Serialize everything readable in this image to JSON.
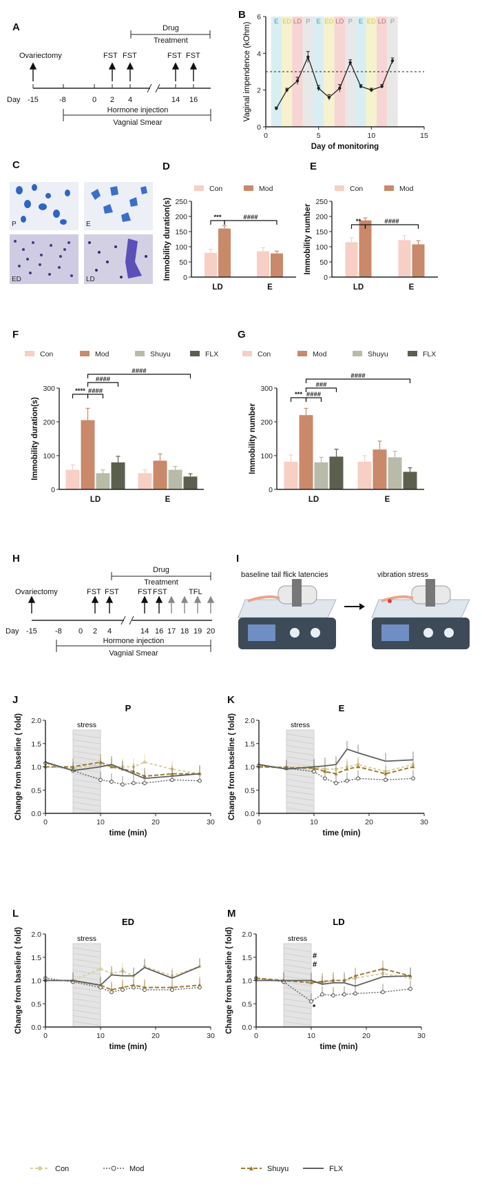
{
  "panels": {
    "A": {
      "label": "A",
      "drug_treatment_line1": "Drug",
      "drug_treatment_line2": "Treatment",
      "ovariectomy": "Ovariectomy",
      "fst": "FST",
      "day_label": "Day",
      "days": [
        "-15",
        "-8",
        "0",
        "2",
        "4",
        "14",
        "16"
      ],
      "hormone_injection": "Hormone injection",
      "vaginal_smear": "Vagnial Smear"
    },
    "C": {
      "label": "C",
      "stage_labels": [
        "P",
        "E",
        "ED",
        "LD"
      ]
    },
    "H": {
      "label": "H",
      "drug_treatment_line1": "Drug",
      "drug_treatment_line2": "Treatment",
      "ovariectomy": "Ovariectomy",
      "fst": "FST",
      "tfl": "TFL",
      "day_label": "Day",
      "days": [
        "-15",
        "-8",
        "0",
        "2",
        "4",
        "14",
        "16",
        "17",
        "18",
        "19",
        "20"
      ],
      "hormone_injection": "Hormone injection",
      "vaginal_smear": "Vagnial Smear"
    },
    "I": {
      "label": "I",
      "left_caption": "baseline tail flick latencies",
      "right_caption": "vibration stress"
    }
  },
  "colors": {
    "con": "#f7cfc4",
    "mod": "#c9896a",
    "shuyu": "#b7bba8",
    "flx": "#5b5f4e",
    "con_line": "#d8cf9a",
    "mod_line": "#666666",
    "shuyu_line": "#9c7a33",
    "flx_line": "#5f5f5f"
  },
  "chart_data": [
    {
      "id": "B",
      "label": "B",
      "type": "line",
      "ylabel": "Vaginal impendence (kOhm)",
      "xlabel": "Day of monitoring",
      "xlim": [
        0,
        15
      ],
      "ylim": [
        0,
        6
      ],
      "xticks": [
        0,
        5,
        10,
        15
      ],
      "yticks": [
        0,
        2,
        4,
        6
      ],
      "threshold": 3.0,
      "stages": [
        "E",
        "ED",
        "LD",
        "P",
        "E",
        "ED",
        "LD",
        "P",
        "E",
        "ED",
        "LD",
        "P"
      ],
      "x": [
        1,
        2,
        3,
        4,
        5,
        6,
        7,
        8,
        9,
        10,
        11,
        12
      ],
      "values": [
        1.0,
        2.0,
        2.5,
        3.8,
        2.1,
        1.6,
        2.1,
        3.5,
        2.2,
        2.0,
        2.2,
        3.6
      ],
      "errors": [
        0.08,
        0.1,
        0.2,
        0.3,
        0.15,
        0.15,
        0.2,
        0.15,
        0.1,
        0.1,
        0.1,
        0.15
      ]
    },
    {
      "id": "D",
      "label": "D",
      "type": "bar",
      "ylabel": "Immobility duration(s)",
      "categories": [
        "LD",
        "E"
      ],
      "ylim": [
        0,
        250
      ],
      "yticks": [
        0,
        50,
        100,
        150,
        200,
        250
      ],
      "series": [
        {
          "name": "Con",
          "values": [
            80,
            85
          ],
          "errors": [
            12,
            12
          ]
        },
        {
          "name": "Mod",
          "values": [
            160,
            78
          ],
          "errors": [
            10,
            8
          ]
        }
      ],
      "annotations": [
        "***",
        "####"
      ]
    },
    {
      "id": "E",
      "label": "E",
      "type": "bar",
      "ylabel": "Immobility number",
      "categories": [
        "LD",
        "E"
      ],
      "ylim": [
        0,
        250
      ],
      "yticks": [
        0,
        50,
        100,
        150,
        200,
        250
      ],
      "series": [
        {
          "name": "Con",
          "values": [
            115,
            122
          ],
          "errors": [
            15,
            15
          ]
        },
        {
          "name": "Mod",
          "values": [
            187,
            108
          ],
          "errors": [
            8,
            12
          ]
        }
      ],
      "annotations": [
        "**",
        "####"
      ]
    },
    {
      "id": "F",
      "label": "F",
      "type": "bar",
      "ylabel": "Immobility duration(s)",
      "categories": [
        "LD",
        "E"
      ],
      "ylim": [
        0,
        300
      ],
      "yticks": [
        0,
        100,
        200,
        300
      ],
      "series": [
        {
          "name": "Con",
          "values": [
            58,
            48
          ],
          "errors": [
            15,
            10
          ]
        },
        {
          "name": "Mod",
          "values": [
            205,
            85
          ],
          "errors": [
            35,
            20
          ]
        },
        {
          "name": "Shuyu",
          "values": [
            48,
            58
          ],
          "errors": [
            10,
            10
          ]
        },
        {
          "name": "FLX",
          "values": [
            80,
            38
          ],
          "errors": [
            18,
            8
          ]
        }
      ],
      "annotations": [
        "****",
        "####",
        "####",
        "####"
      ]
    },
    {
      "id": "G",
      "label": "G",
      "type": "bar",
      "ylabel": "Immobility number",
      "categories": [
        "LD",
        "E"
      ],
      "ylim": [
        0,
        300
      ],
      "yticks": [
        0,
        100,
        200,
        300
      ],
      "series": [
        {
          "name": "Con",
          "values": [
            82,
            82
          ],
          "errors": [
            20,
            18
          ]
        },
        {
          "name": "Mod",
          "values": [
            220,
            118
          ],
          "errors": [
            20,
            25
          ]
        },
        {
          "name": "Shuyu",
          "values": [
            80,
            95
          ],
          "errors": [
            15,
            18
          ]
        },
        {
          "name": "FLX",
          "values": [
            97,
            52
          ],
          "errors": [
            22,
            12
          ]
        }
      ],
      "annotations": [
        "***",
        "####",
        "###",
        "####"
      ]
    },
    {
      "id": "J",
      "label": "J",
      "type": "line",
      "title": "P",
      "xlabel": "time (min)",
      "ylabel": "Change from baseline ( fold)",
      "xlim": [
        0,
        30
      ],
      "ylim": [
        0,
        2.0
      ],
      "xticks": [
        0,
        10,
        20,
        30
      ],
      "yticks": [
        0,
        0.5,
        1.0,
        1.5,
        2.0
      ],
      "stress_label": "stress",
      "stress_range": [
        5,
        10
      ],
      "x": [
        0,
        5,
        10,
        12,
        14,
        16,
        18,
        23,
        28
      ],
      "series": [
        {
          "name": "Con",
          "values": [
            1.0,
            0.97,
            1.05,
            1.0,
            1.0,
            1.0,
            1.1,
            0.95,
            0.85
          ]
        },
        {
          "name": "Mod",
          "values": [
            1.08,
            0.92,
            0.72,
            0.68,
            0.62,
            0.65,
            0.65,
            0.72,
            0.7
          ]
        },
        {
          "name": "Shuyu",
          "values": [
            1.0,
            1.0,
            1.1,
            1.0,
            0.95,
            0.9,
            0.8,
            0.85,
            0.85
          ]
        },
        {
          "name": "FLX",
          "values": [
            1.1,
            0.92,
            1.0,
            1.05,
            0.95,
            0.85,
            0.75,
            0.8,
            0.85
          ]
        }
      ]
    },
    {
      "id": "K",
      "label": "K",
      "type": "line",
      "title": "E",
      "xlabel": "time (min)",
      "ylabel": "Change from baseline ( fold)",
      "xlim": [
        0,
        30
      ],
      "ylim": [
        0,
        2.0
      ],
      "xticks": [
        0,
        10,
        20,
        30
      ],
      "yticks": [
        0,
        0.5,
        1.0,
        1.5,
        2.0
      ],
      "stress_label": "stress",
      "stress_range": [
        5,
        10
      ],
      "x": [
        0,
        5,
        10,
        12,
        14,
        16,
        18,
        23,
        28
      ],
      "series": [
        {
          "name": "Con",
          "values": [
            1.0,
            1.0,
            1.0,
            0.95,
            0.95,
            1.0,
            1.05,
            0.9,
            1.05
          ]
        },
        {
          "name": "Mod",
          "values": [
            1.03,
            0.97,
            0.9,
            0.75,
            0.65,
            0.7,
            0.75,
            0.72,
            0.75
          ]
        },
        {
          "name": "Shuyu",
          "values": [
            1.0,
            0.98,
            0.97,
            0.9,
            0.85,
            0.95,
            1.0,
            0.85,
            1.0
          ]
        },
        {
          "name": "FLX",
          "values": [
            1.05,
            0.95,
            1.0,
            1.02,
            1.05,
            1.38,
            1.3,
            1.12,
            1.15
          ]
        }
      ]
    },
    {
      "id": "L",
      "label": "L",
      "type": "line",
      "title": "ED",
      "xlabel": "time (min)",
      "ylabel": "Change from baseline ( fold)",
      "xlim": [
        0,
        30
      ],
      "ylim": [
        0,
        2.0
      ],
      "xticks": [
        0,
        10,
        20,
        30
      ],
      "yticks": [
        0,
        0.5,
        1.0,
        1.5,
        2.0
      ],
      "stress_label": "stress",
      "stress_range": [
        5,
        10
      ],
      "x": [
        0,
        5,
        10,
        12,
        14,
        16,
        18,
        23,
        28
      ],
      "series": [
        {
          "name": "Con",
          "values": [
            1.0,
            1.0,
            1.25,
            1.15,
            1.2,
            1.1,
            1.3,
            1.1,
            1.3
          ]
        },
        {
          "name": "Mod",
          "values": [
            1.05,
            0.97,
            0.85,
            0.75,
            0.8,
            0.85,
            0.8,
            0.8,
            0.85
          ]
        },
        {
          "name": "Shuyu",
          "values": [
            1.0,
            1.0,
            0.9,
            0.8,
            0.85,
            0.9,
            0.85,
            0.85,
            0.9
          ]
        },
        {
          "name": "FLX",
          "values": [
            1.0,
            1.0,
            0.9,
            1.12,
            1.1,
            1.1,
            1.28,
            1.05,
            1.3
          ]
        }
      ]
    },
    {
      "id": "M",
      "label": "M",
      "type": "line",
      "title": "LD",
      "xlabel": "time (min)",
      "ylabel": "Change from baseline ( fold)",
      "xlim": [
        0,
        30
      ],
      "ylim": [
        0,
        2.0
      ],
      "xticks": [
        0,
        10,
        20,
        30
      ],
      "yticks": [
        0,
        0.5,
        1.0,
        1.5,
        2.0
      ],
      "stress_label": "stress",
      "stress_range": [
        5,
        10
      ],
      "annotations": [
        "#",
        "#",
        "*"
      ],
      "x": [
        0,
        5,
        10,
        12,
        14,
        16,
        18,
        23,
        28
      ],
      "series": [
        {
          "name": "Con",
          "values": [
            1.0,
            1.0,
            1.0,
            0.95,
            1.0,
            1.0,
            1.05,
            1.15,
            1.05
          ]
        },
        {
          "name": "Mod",
          "values": [
            1.05,
            0.97,
            0.55,
            0.7,
            0.68,
            0.7,
            0.72,
            0.75,
            0.82
          ]
        },
        {
          "name": "Shuyu",
          "values": [
            1.05,
            1.0,
            0.95,
            0.98,
            1.0,
            1.0,
            1.1,
            1.25,
            1.1
          ]
        },
        {
          "name": "FLX",
          "values": [
            1.0,
            1.0,
            1.0,
            0.92,
            0.95,
            0.95,
            0.88,
            1.08,
            1.1
          ]
        }
      ]
    }
  ],
  "legend_bottom": [
    "Con",
    "Mod",
    "Shuyu",
    "FLX"
  ]
}
